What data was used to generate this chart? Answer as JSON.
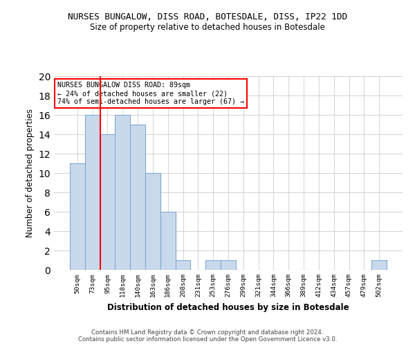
{
  "title": "NURSES BUNGALOW, DISS ROAD, BOTESDALE, DISS, IP22 1DD",
  "subtitle": "Size of property relative to detached houses in Botesdale",
  "xlabel": "Distribution of detached houses by size in Botesdale",
  "ylabel": "Number of detached properties",
  "categories": [
    "50sqm",
    "73sqm",
    "95sqm",
    "118sqm",
    "140sqm",
    "163sqm",
    "186sqm",
    "208sqm",
    "231sqm",
    "253sqm",
    "276sqm",
    "299sqm",
    "321sqm",
    "344sqm",
    "366sqm",
    "389sqm",
    "412sqm",
    "434sqm",
    "457sqm",
    "479sqm",
    "502sqm"
  ],
  "values": [
    11,
    16,
    14,
    16,
    15,
    10,
    6,
    1,
    0,
    1,
    1,
    0,
    0,
    0,
    0,
    0,
    0,
    0,
    0,
    0,
    1
  ],
  "bar_color": "#c9d9ec",
  "bar_edge_color": "#7fa8d0",
  "property_line_x": 1.5,
  "annotation_text": "NURSES BUNGALOW DISS ROAD: 89sqm\n← 24% of detached houses are smaller (22)\n74% of semi-detached houses are larger (67) →",
  "annotation_box_color": "white",
  "annotation_box_edge_color": "red",
  "vline_color": "red",
  "ylim": [
    0,
    20
  ],
  "yticks": [
    0,
    2,
    4,
    6,
    8,
    10,
    12,
    14,
    16,
    18,
    20
  ],
  "footer": "Contains HM Land Registry data © Crown copyright and database right 2024.\nContains public sector information licensed under the Open Government Licence v3.0.",
  "background_color": "white",
  "grid_color": "#cccccc"
}
